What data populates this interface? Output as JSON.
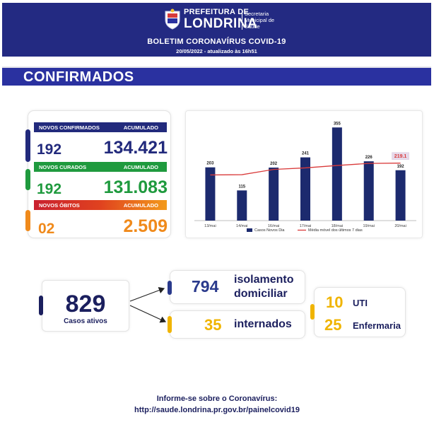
{
  "header": {
    "logo_top": "PREFEITURA DE",
    "logo_main": "LONDRINA",
    "logo_side_1": "Secretaria",
    "logo_side_2": "Municipal de",
    "logo_side_3": "Saúde",
    "title": "BOLETIM CORONAVÍRUS COVID-19",
    "date": "20/05/2022 - atualizado às 16h51"
  },
  "section": {
    "title": "CONFIRMADOS"
  },
  "stats": {
    "confirmed": {
      "label": "NOVOS CONFIRMADOS",
      "acc_label": "ACUMULADO",
      "new": "192",
      "total": "134.421",
      "color": "#222a7c"
    },
    "recovered": {
      "label": "NOVOS CURADOS",
      "acc_label": "ACUMULADO",
      "new": "192",
      "total": "131.083",
      "color": "#1f9a3e"
    },
    "deaths": {
      "label": "NOVOS ÓBITOS",
      "acc_label": "ACUMULADO",
      "new": "02",
      "total": "2.509",
      "color": "#f08a1b"
    }
  },
  "chart_data": {
    "type": "bar",
    "categories": [
      "13/mai",
      "14/mai",
      "16/mai",
      "17/mai",
      "18/mai",
      "19/mai",
      "20/mai"
    ],
    "series": [
      {
        "name": "Casos Novos Dia",
        "type": "bar",
        "values": [
          203,
          115,
          202,
          241,
          355,
          226,
          192
        ],
        "color": "#1c2a6e"
      },
      {
        "name": "Média móvel dos últimos 7 dias",
        "type": "line",
        "values": [
          174,
          175,
          195,
          201,
          210,
          218,
          219.1
        ],
        "color": "#d93a3a"
      }
    ],
    "highlight_label": "219.1",
    "ylim": [
      0,
      380
    ],
    "grid": false,
    "legend": "bottom"
  },
  "active": {
    "value": "829",
    "label": "Casos ativos"
  },
  "isolation": {
    "value": "794",
    "label_line1": "isolamento",
    "label_line2": "domiciliar"
  },
  "hospitalized": {
    "value": "35",
    "label": "internados"
  },
  "icu": {
    "value": "10",
    "label": "UTI"
  },
  "ward": {
    "value": "25",
    "label": "Enfermaria"
  },
  "footer": {
    "line1": "Informe-se sobre o Coronavírus:",
    "line2": "http://saude.londrina.pr.gov.br/painelcovid19"
  }
}
